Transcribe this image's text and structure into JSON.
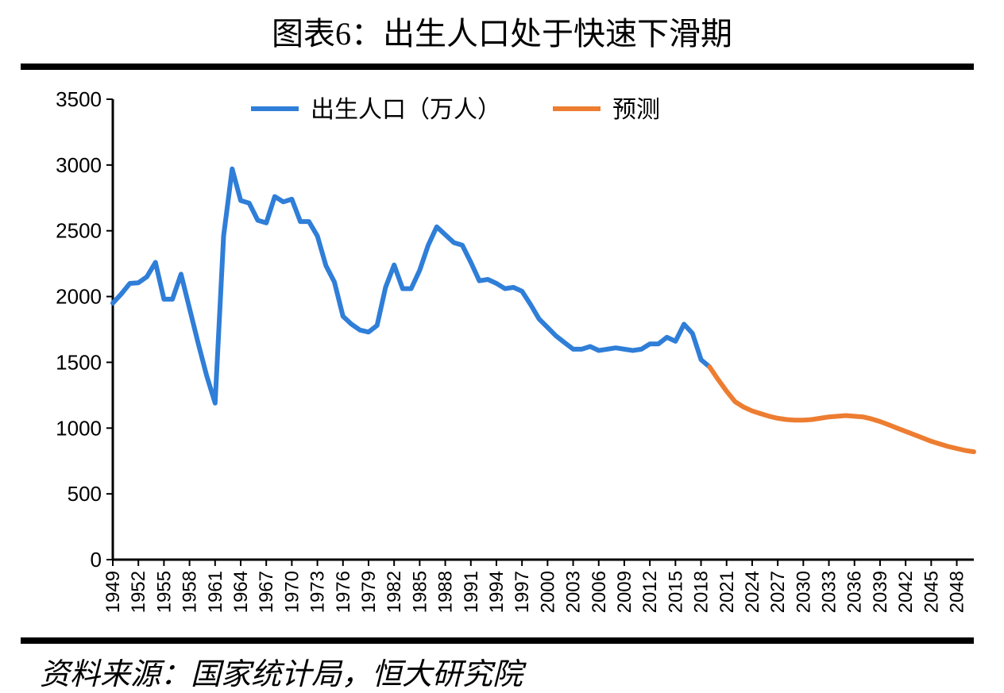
{
  "title": "图表6：出生人口处于快速下滑期",
  "source": "资料来源：国家统计局，恒大研究院",
  "chart": {
    "type": "line",
    "background_color": "#ffffff",
    "axis_color": "#000000",
    "axis_width": 3,
    "title_rule_color": "#000000",
    "title_rule_height": 8,
    "ylim": [
      0,
      3500
    ],
    "ytick_step": 500,
    "yticks": [
      0,
      500,
      1000,
      1500,
      2000,
      2500,
      3000,
      3500
    ],
    "ytick_fontsize": 26,
    "xlim": [
      1949,
      2050
    ],
    "xtick_start": 1949,
    "xtick_step": 3,
    "xtick_end": 2048,
    "xticks": [
      1949,
      1952,
      1955,
      1958,
      1961,
      1964,
      1967,
      1970,
      1973,
      1976,
      1979,
      1982,
      1985,
      1988,
      1991,
      1994,
      1997,
      2000,
      2003,
      2006,
      2009,
      2012,
      2015,
      2018,
      2021,
      2024,
      2027,
      2030,
      2033,
      2036,
      2039,
      2042,
      2045,
      2048
    ],
    "xtick_fontsize": 24,
    "xtick_rotation": -90,
    "tick_length": 8,
    "legend": {
      "items": [
        {
          "label": "出生人口（万人）",
          "color": "#2f7ed8",
          "width": 6
        },
        {
          "label": "预测",
          "color": "#ed7d31",
          "width": 6
        }
      ],
      "fontsize": 30
    },
    "series": [
      {
        "name": "historical",
        "label": "出生人口（万人）",
        "color": "#2f7ed8",
        "line_width": 6,
        "x": [
          1949,
          1950,
          1951,
          1952,
          1953,
          1954,
          1955,
          1956,
          1957,
          1958,
          1959,
          1960,
          1961,
          1962,
          1963,
          1964,
          1965,
          1966,
          1967,
          1968,
          1969,
          1970,
          1971,
          1972,
          1973,
          1974,
          1975,
          1976,
          1977,
          1978,
          1979,
          1980,
          1981,
          1982,
          1983,
          1984,
          1985,
          1986,
          1987,
          1988,
          1989,
          1990,
          1991,
          1992,
          1993,
          1994,
          1995,
          1996,
          1997,
          1998,
          1999,
          2000,
          2001,
          2002,
          2003,
          2004,
          2005,
          2006,
          2007,
          2008,
          2009,
          2010,
          2011,
          2012,
          2013,
          2014,
          2015,
          2016,
          2017,
          2018,
          2019
        ],
        "y": [
          1950,
          2020,
          2100,
          2105,
          2150,
          2260,
          1980,
          1980,
          2170,
          1910,
          1650,
          1400,
          1190,
          2460,
          2970,
          2730,
          2710,
          2580,
          2560,
          2760,
          2720,
          2740,
          2570,
          2570,
          2460,
          2235,
          2110,
          1850,
          1790,
          1745,
          1730,
          1780,
          2070,
          2240,
          2060,
          2060,
          2200,
          2390,
          2530,
          2470,
          2410,
          2390,
          2260,
          2120,
          2130,
          2100,
          2060,
          2070,
          2040,
          1940,
          1830,
          1765,
          1700,
          1650,
          1600,
          1600,
          1620,
          1590,
          1600,
          1610,
          1600,
          1590,
          1600,
          1640,
          1640,
          1690,
          1660,
          1790,
          1720,
          1520,
          1465
        ]
      },
      {
        "name": "forecast",
        "label": "预测",
        "color": "#ed7d31",
        "line_width": 6,
        "x": [
          2019,
          2020,
          2021,
          2022,
          2023,
          2024,
          2025,
          2026,
          2027,
          2028,
          2029,
          2030,
          2031,
          2032,
          2033,
          2034,
          2035,
          2036,
          2037,
          2038,
          2039,
          2040,
          2041,
          2042,
          2043,
          2044,
          2045,
          2046,
          2047,
          2048,
          2049,
          2050
        ],
        "y": [
          1465,
          1370,
          1280,
          1200,
          1160,
          1130,
          1110,
          1090,
          1075,
          1065,
          1060,
          1060,
          1065,
          1075,
          1085,
          1090,
          1095,
          1090,
          1085,
          1070,
          1050,
          1025,
          1000,
          975,
          950,
          925,
          900,
          880,
          860,
          845,
          830,
          820
        ]
      }
    ]
  }
}
